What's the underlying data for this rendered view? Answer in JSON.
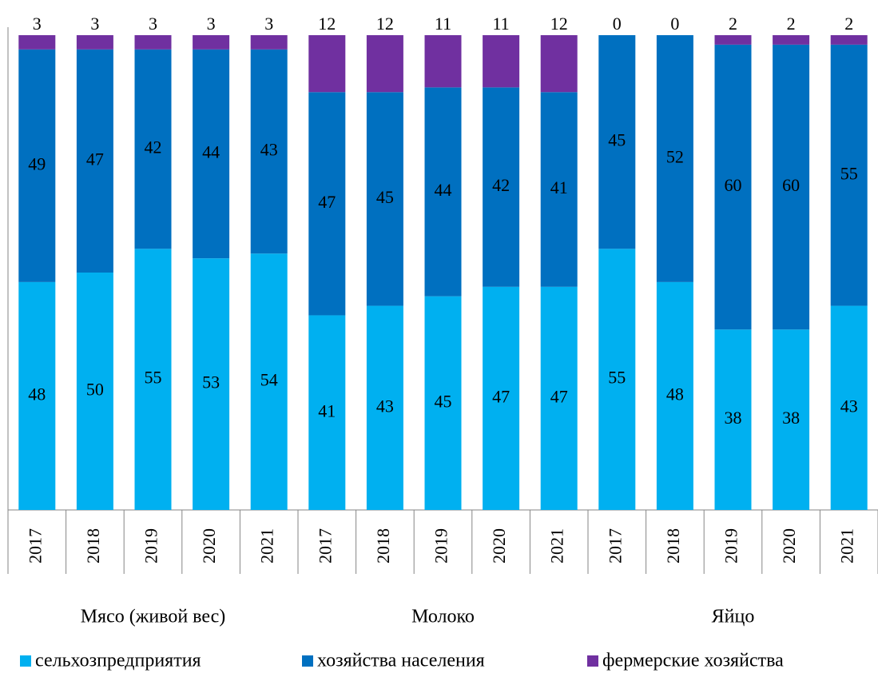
{
  "chart_data": {
    "type": "stacked_bar",
    "groups": [
      {
        "name": "Мясо (живой вес)",
        "categories": [
          "2017",
          "2018",
          "2019",
          "2020",
          "2021"
        ]
      },
      {
        "name": "Молоко",
        "categories": [
          "2017",
          "2018",
          "2019",
          "2020",
          "2021"
        ]
      },
      {
        "name": "Яйцо",
        "categories": [
          "2017",
          "2018",
          "2019",
          "2020",
          "2021"
        ]
      }
    ],
    "series": [
      {
        "name": "сельхозпредприятия",
        "color": "#00b0f0",
        "values": [
          48,
          50,
          55,
          53,
          54,
          41,
          43,
          45,
          47,
          47,
          55,
          48,
          38,
          38,
          43
        ]
      },
      {
        "name": "хозяйства населения",
        "color": "#0070c0",
        "values": [
          49,
          47,
          42,
          44,
          43,
          47,
          45,
          44,
          42,
          41,
          45,
          52,
          60,
          60,
          55
        ]
      },
      {
        "name": "фермерские хозяйства",
        "color": "#7030a0",
        "values": [
          3,
          3,
          3,
          3,
          3,
          12,
          12,
          11,
          11,
          12,
          0,
          0,
          2,
          2,
          2
        ]
      }
    ],
    "ylim": [
      0,
      100
    ]
  }
}
